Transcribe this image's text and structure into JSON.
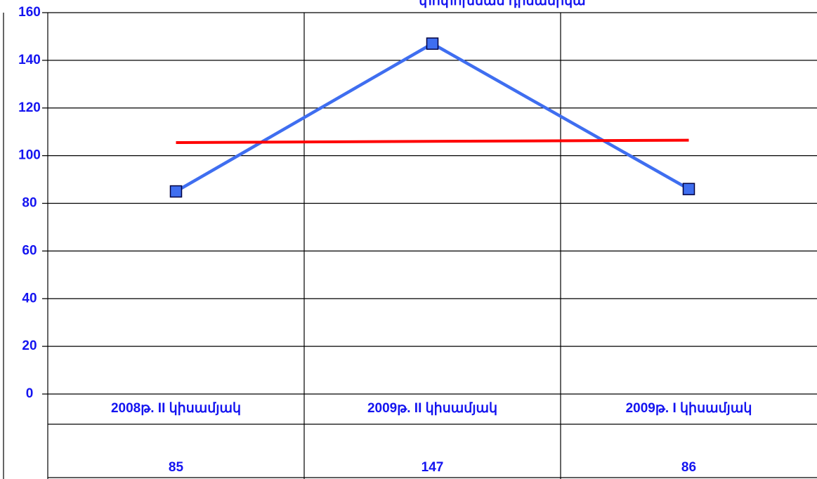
{
  "chart_data": {
    "type": "line",
    "title": "փոփոխման դինամիկա",
    "categories": [
      "2008թ. II կիսամյակ",
      "2009թ. II կիսամյակ",
      "2009թ. I կիսամյակ"
    ],
    "series": [
      {
        "color": "#3f6ef0",
        "values": [
          85,
          147,
          86
        ]
      }
    ],
    "trendline": {
      "color": "#ff0000"
    },
    "ylim": [
      0,
      160
    ],
    "yticks": [
      0,
      20,
      40,
      60,
      80,
      100,
      120,
      140,
      160
    ],
    "grid": true
  }
}
